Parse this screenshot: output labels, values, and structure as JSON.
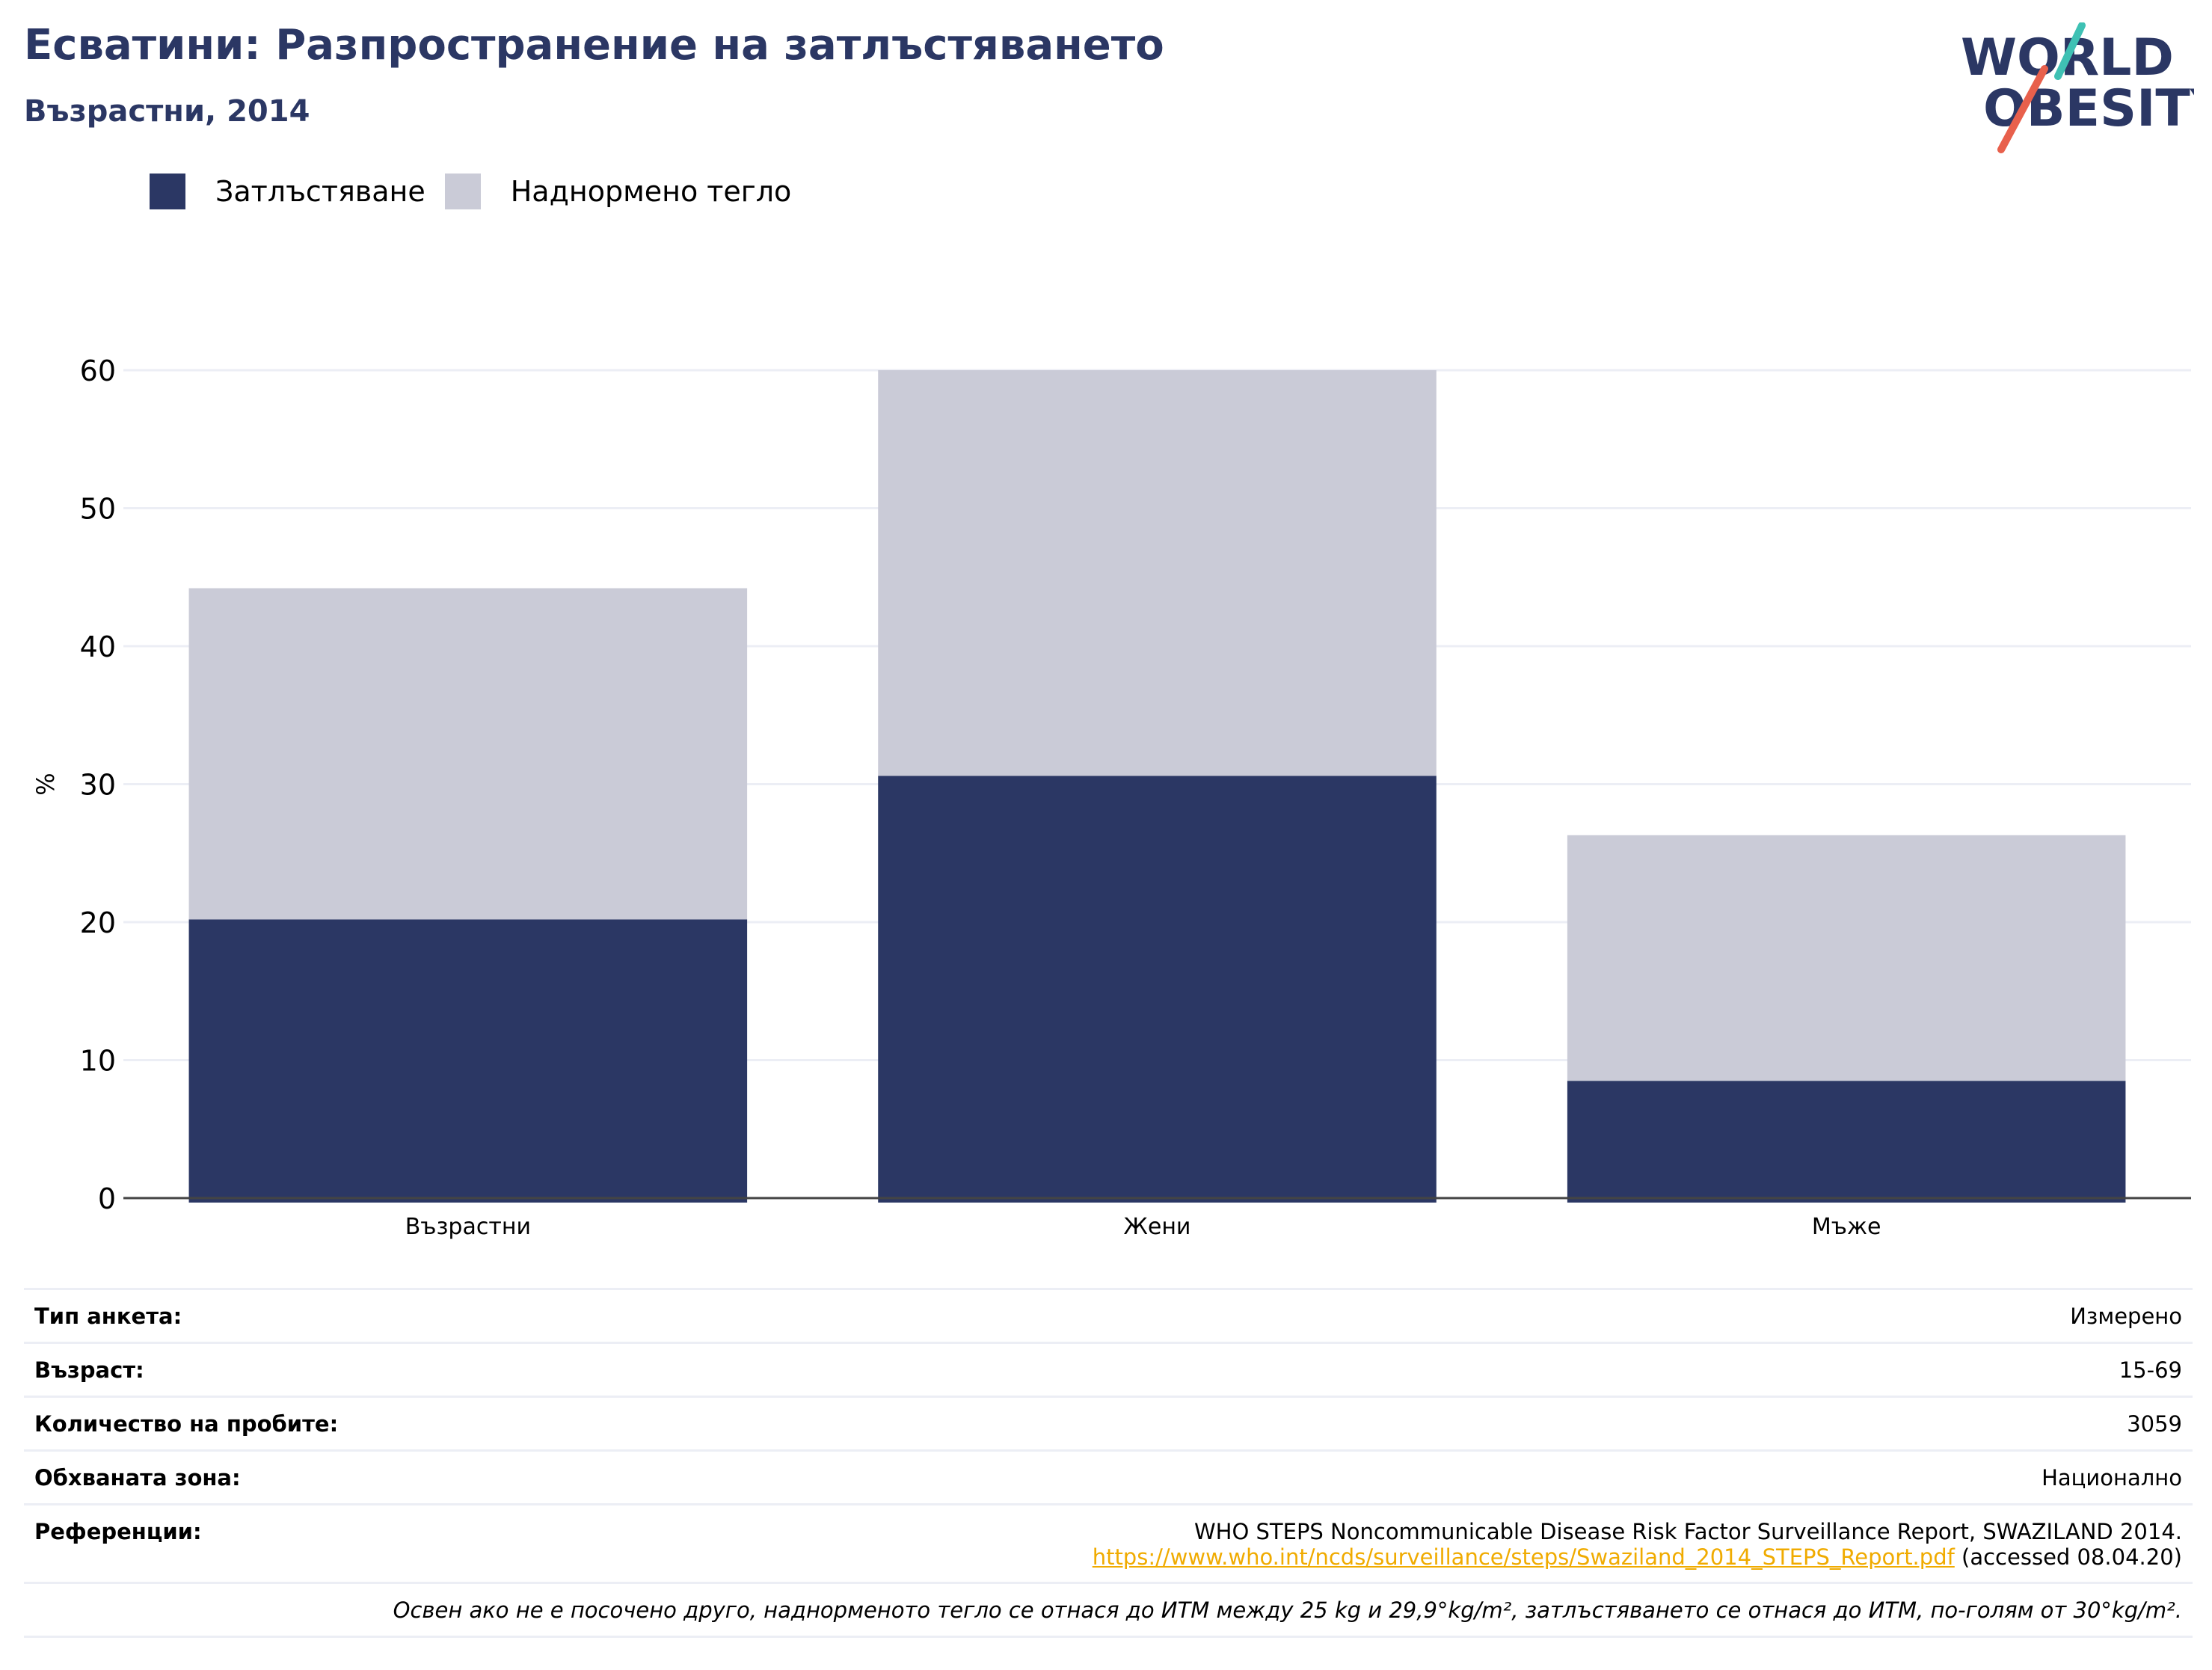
{
  "header": {
    "title": "Есватини: Разпространение на затлъстяването",
    "subtitle": "Възрастни, 2014"
  },
  "logo": {
    "line1": "WORLD",
    "line2": "OBESITY"
  },
  "colors": {
    "obesity": "#2b3764",
    "overweight": "#cacbd7",
    "accent_teal": "#3fc1b4",
    "accent_red": "#e8604c"
  },
  "chart_data": {
    "type": "bar",
    "stacked": true,
    "categories": [
      "Възрастни",
      "Жени",
      "Мъже"
    ],
    "series": [
      {
        "name": "Затлъстяване",
        "values": [
          20.2,
          30.6,
          8.5
        ]
      },
      {
        "name": "Наднормено тегло",
        "values": [
          24.0,
          29.4,
          17.8
        ]
      }
    ],
    "ylabel": "%",
    "ylim": [
      0,
      60
    ],
    "yticks": [
      0,
      10,
      20,
      30,
      40,
      50,
      60
    ],
    "grid": true,
    "legend_position": "top-left"
  },
  "info": {
    "rows": [
      {
        "key": "Тип анкета:",
        "value": "Измерено"
      },
      {
        "key": "Възраст:",
        "value": "15-69"
      },
      {
        "key": "Количество на пробите:",
        "value": "3059"
      },
      {
        "key": "Обхваната зона:",
        "value": "Национално"
      }
    ],
    "references": {
      "key": "Референции:",
      "text": "WHO STEPS Noncommunicable Disease Risk Factor Surveillance Report, SWAZILAND 2014.",
      "link": "https://www.who.int/ncds/surveillance/steps/Swaziland_2014_STEPS_Report.pdf",
      "accessed": " (accessed 08.04.20)"
    },
    "note": "Освен ако не е посочено друго, наднорменото тегло се отнася до ИТМ между 25 kg и 29,9°kg/m², затлъстяването се отнася до ИТМ, по-голям от 30°kg/m²."
  }
}
